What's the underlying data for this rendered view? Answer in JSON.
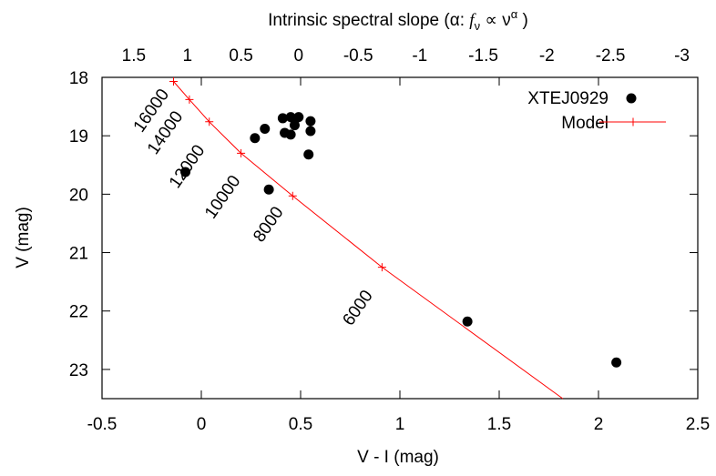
{
  "chart_data": {
    "type": "scatter",
    "xlabel": "V - I (mag)",
    "ylabel": "V (mag)",
    "top_axis_label": "Intrinsic spectral slope (α: fν ∝ να )",
    "top_axis_label_parts": {
      "prefix": "Intrinsic spectral slope (α: ",
      "f": "f",
      "nu_sub": "ν",
      "propto": " ∝ ν",
      "alpha_sup": "α",
      "suffix": " )"
    },
    "xlim": [
      -0.5,
      2.5
    ],
    "ylim": [
      23.5,
      18
    ],
    "y_inverted": true,
    "x_ticks": [
      "-0.5",
      "0",
      "0.5",
      "1",
      "1.5",
      "2",
      "2.5"
    ],
    "x_tick_values": [
      -0.5,
      0,
      0.5,
      1,
      1.5,
      2,
      2.5
    ],
    "y_ticks": [
      "18",
      "19",
      "20",
      "21",
      "22",
      "23"
    ],
    "y_tick_values": [
      18,
      19,
      20,
      21,
      22,
      23
    ],
    "top_ticks": [
      {
        "label": "1.5",
        "x": -0.34
      },
      {
        "label": "1",
        "x": -0.07
      },
      {
        "label": "0.5",
        "x": 0.2
      },
      {
        "label": "0",
        "x": 0.49
      },
      {
        "label": "-0.5",
        "x": 0.79
      },
      {
        "label": "-1",
        "x": 1.1
      },
      {
        "label": "-1.5",
        "x": 1.42
      },
      {
        "label": "-2",
        "x": 1.74
      },
      {
        "label": "-2.5",
        "x": 2.06
      },
      {
        "label": "-3",
        "x": 2.42
      }
    ],
    "grid": false,
    "legend_position": "top-right",
    "series": [
      {
        "name": "XTEJ0929",
        "style": "points",
        "color": "#000000",
        "points": [
          {
            "x": -0.08,
            "y": 19.62
          },
          {
            "x": 0.27,
            "y": 19.04
          },
          {
            "x": 0.32,
            "y": 18.88
          },
          {
            "x": 0.41,
            "y": 18.7
          },
          {
            "x": 0.42,
            "y": 18.95
          },
          {
            "x": 0.45,
            "y": 18.68
          },
          {
            "x": 0.45,
            "y": 18.98
          },
          {
            "x": 0.47,
            "y": 18.73
          },
          {
            "x": 0.47,
            "y": 18.82
          },
          {
            "x": 0.49,
            "y": 18.68
          },
          {
            "x": 0.55,
            "y": 18.75
          },
          {
            "x": 0.55,
            "y": 18.92
          },
          {
            "x": 0.54,
            "y": 19.32
          },
          {
            "x": 0.34,
            "y": 19.92
          },
          {
            "x": 1.34,
            "y": 22.18
          },
          {
            "x": 2.09,
            "y": 22.88
          }
        ]
      },
      {
        "name": "Model",
        "style": "line-with-plus-markers",
        "color": "#ff0000",
        "points": [
          {
            "x": -0.14,
            "y": 18.07
          },
          {
            "x": -0.06,
            "y": 18.38
          },
          {
            "x": 0.04,
            "y": 18.76
          },
          {
            "x": 0.2,
            "y": 19.3
          },
          {
            "x": 0.46,
            "y": 20.03
          },
          {
            "x": 0.91,
            "y": 21.25
          }
        ],
        "line_end": {
          "x": 1.82,
          "y": 23.5
        }
      }
    ],
    "annotations": [
      {
        "text": "16000",
        "x": -0.23,
        "y": 18.62
      },
      {
        "text": "14000",
        "x": -0.16,
        "y": 19.0
      },
      {
        "text": "12000",
        "x": -0.05,
        "y": 19.58
      },
      {
        "text": "10000",
        "x": 0.13,
        "y": 20.1
      },
      {
        "text": "8000",
        "x": 0.36,
        "y": 20.57
      },
      {
        "text": "6000",
        "x": 0.81,
        "y": 22.0
      }
    ]
  }
}
